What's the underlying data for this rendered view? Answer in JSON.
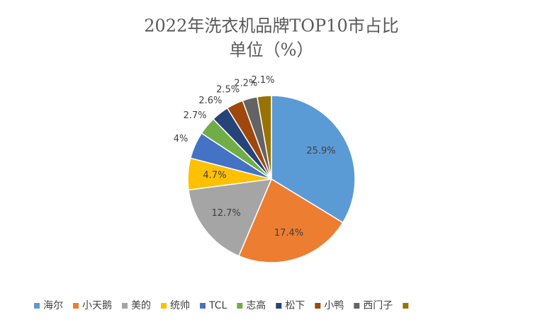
{
  "chart_data": {
    "type": "pie",
    "title": "2022年洗衣机品牌TOP10市占比",
    "subtitle": "单位（%）",
    "categories": [
      "海尔",
      "小天鹅",
      "美的",
      "统帅",
      "TCL",
      "志高",
      "松下",
      "小鸭",
      "西门子",
      null
    ],
    "values": [
      25.9,
      17.4,
      12.7,
      4.7,
      4,
      2.7,
      2.6,
      2.5,
      2.2,
      2.1
    ],
    "value_labels": [
      "25.9%",
      "17.4%",
      "12.7%",
      "4.7%",
      "4%",
      "2.7%",
      "2.6%",
      "2.5%",
      "2.2%",
      "2.1%"
    ],
    "colors": [
      "#5b9bd5",
      "#ed7d31",
      "#a5a5a5",
      "#ffc000",
      "#4472c4",
      "#70ad47",
      "#264478",
      "#9e480e",
      "#636363",
      "#997300"
    ],
    "legend": "bottom"
  }
}
